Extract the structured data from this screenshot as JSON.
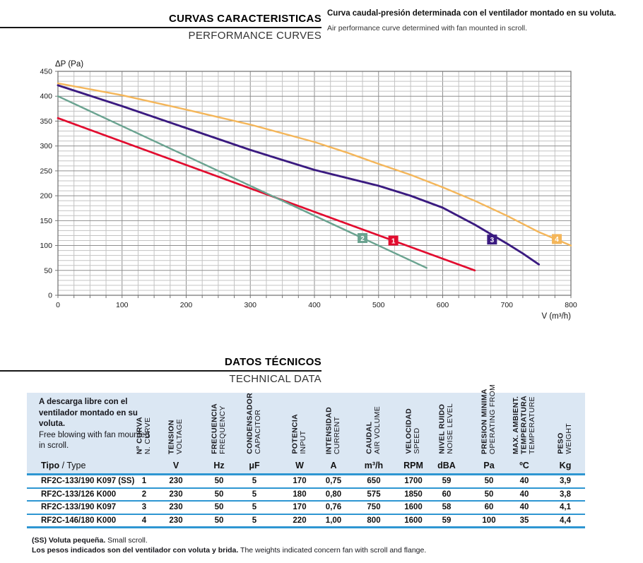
{
  "header": {
    "title_es": "CURVAS CARACTERISTICAS",
    "title_en": "PERFORMANCE CURVES",
    "desc_es": "Curva caudal-presión determinada con el ventilador montado en su voluta.",
    "desc_en": "Air performance curve determined with fan mounted in scroll."
  },
  "section2": {
    "title_es": "DATOS TÉCNICOS",
    "title_en": "TECHNICAL DATA"
  },
  "chart_data": {
    "type": "line",
    "title": "",
    "ylabel": "ΔP (Pa)",
    "xlabel": "V (m³/h)",
    "xlim": [
      0,
      800
    ],
    "ylim": [
      0,
      450
    ],
    "x_ticks": [
      0,
      100,
      200,
      300,
      400,
      500,
      600,
      700,
      800
    ],
    "y_ticks": [
      0,
      50,
      100,
      150,
      200,
      250,
      300,
      350,
      400,
      450
    ],
    "x_minor_step": 25,
    "y_minor_step": 10,
    "grid": true,
    "legend": "numbered square markers on curves",
    "series": [
      {
        "name": "1",
        "color": "#e20c2f",
        "points": [
          [
            0,
            356
          ],
          [
            650,
            50
          ]
        ],
        "marker_at": [
          523,
          110
        ]
      },
      {
        "name": "2",
        "color": "#6aa390",
        "points": [
          [
            0,
            400
          ],
          [
            575,
            55
          ]
        ],
        "marker_at": [
          475,
          115
        ]
      },
      {
        "name": "3",
        "color": "#3a1a80",
        "points": [
          [
            0,
            422
          ],
          [
            100,
            380
          ],
          [
            200,
            336
          ],
          [
            300,
            292
          ],
          [
            400,
            252
          ],
          [
            500,
            220
          ],
          [
            550,
            200
          ],
          [
            600,
            176
          ],
          [
            650,
            142
          ],
          [
            700,
            104
          ],
          [
            725,
            84
          ],
          [
            750,
            62
          ]
        ],
        "marker_at": [
          677,
          112
        ]
      },
      {
        "name": "4",
        "color": "#f4b65a",
        "points": [
          [
            0,
            426
          ],
          [
            100,
            402
          ],
          [
            200,
            373
          ],
          [
            300,
            343
          ],
          [
            400,
            308
          ],
          [
            450,
            287
          ],
          [
            500,
            264
          ],
          [
            550,
            242
          ],
          [
            600,
            217
          ],
          [
            650,
            190
          ],
          [
            700,
            160
          ],
          [
            750,
            127
          ],
          [
            800,
            100
          ]
        ],
        "marker_at": [
          778,
          113
        ]
      }
    ]
  },
  "table": {
    "intro_es": "A descarga libre con el ventilador montado en su voluta.",
    "intro_en": "Free blowing with fan mounted in scroll.",
    "tipo_label_es": "Tipo",
    "tipo_label_sep": " / ",
    "tipo_label_en": "Type",
    "columns": [
      {
        "es": [
          "Nº CURVA"
        ],
        "en": "N. CURVE",
        "unit": ""
      },
      {
        "es": [
          "TENSION"
        ],
        "en": "VOLTAGE",
        "unit": "V"
      },
      {
        "es": [
          "FRECUENCIA"
        ],
        "en": "FREQUENCY",
        "unit": "Hz"
      },
      {
        "es": [
          "CONDENSADOR"
        ],
        "en": "CAPACITOR",
        "unit": "μF"
      },
      {
        "es": [
          "POTENCIA"
        ],
        "en": "INPUT",
        "unit": "W"
      },
      {
        "es": [
          "INTENSIDAD"
        ],
        "en": "CURRENT",
        "unit": "A"
      },
      {
        "es": [
          "CAUDAL"
        ],
        "en": "AIR VOLUME",
        "unit": "m³/h"
      },
      {
        "es": [
          "VELOCIDAD"
        ],
        "en": "SPEED",
        "unit": "RPM"
      },
      {
        "es": [
          "NIVEL RUIDO"
        ],
        "en": "NOISE LEVEL",
        "unit": "dBA"
      },
      {
        "es": [
          "PRESION MINIMA"
        ],
        "en": "OPERATING FROM",
        "unit": "Pa"
      },
      {
        "es": [
          "MAX. AMBIENT.",
          "TEMPERATURA"
        ],
        "en": "TEMPERATURE",
        "unit": "ºC"
      },
      {
        "es": [
          "PESO"
        ],
        "en": "WEIGHT",
        "unit": "Kg"
      }
    ],
    "rows": [
      {
        "tipo": "RF2C-133/190 K097 (SS)",
        "values": [
          "1",
          "230",
          "50",
          "5",
          "170",
          "0,75",
          "650",
          "1700",
          "59",
          "50",
          "40",
          "3,9"
        ]
      },
      {
        "tipo": "RF2C-133/126 K000",
        "values": [
          "2",
          "230",
          "50",
          "5",
          "180",
          "0,80",
          "575",
          "1850",
          "60",
          "50",
          "40",
          "3,8"
        ]
      },
      {
        "tipo": "RF2C-133/190 K097",
        "values": [
          "3",
          "230",
          "50",
          "5",
          "170",
          "0,76",
          "750",
          "1600",
          "58",
          "60",
          "40",
          "4,1"
        ]
      },
      {
        "tipo": "RF2C-146/180 K000",
        "values": [
          "4",
          "230",
          "50",
          "5",
          "220",
          "1,00",
          "800",
          "1600",
          "59",
          "100",
          "35",
          "4,4"
        ]
      }
    ]
  },
  "notes": [
    {
      "es": "(SS) Voluta pequeña.",
      "en": "Small scroll."
    },
    {
      "es": "Los pesos indicados son del ventilador con voluta y brida.",
      "en": "The weights indicated concern fan with scroll and flange."
    }
  ],
  "colors": {
    "table_line": "#2e96d2",
    "table_header_bg": "#dbe7f3",
    "underline": "#161616"
  }
}
